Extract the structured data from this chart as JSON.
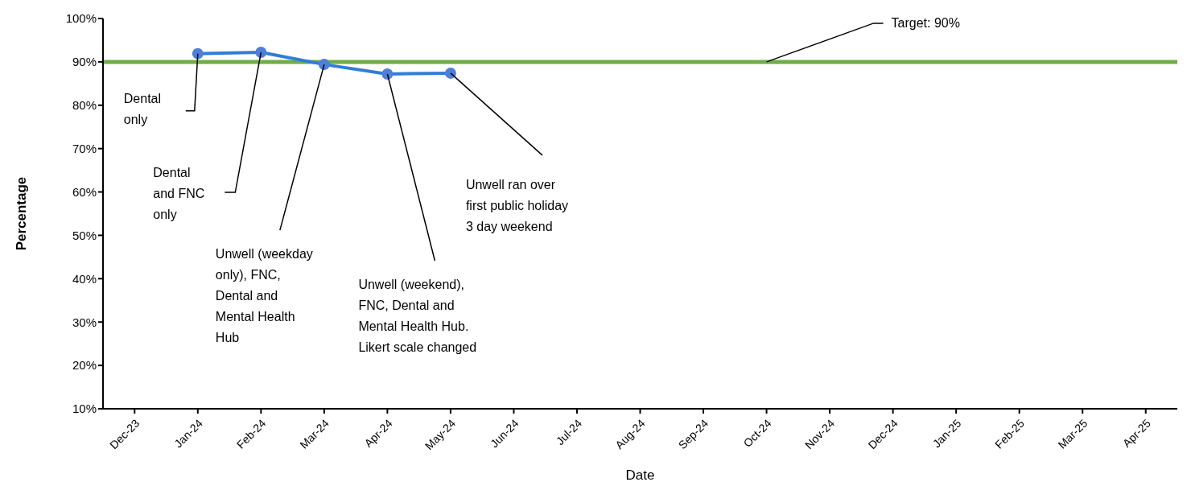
{
  "chart_data": {
    "type": "line",
    "xlabel": "Date",
    "ylabel": "Percentage",
    "categories": [
      "Dec-23",
      "Jan-24",
      "Feb-24",
      "Mar-24",
      "Apr-24",
      "May-24",
      "Jun-24",
      "Jul-24",
      "Aug-24",
      "Sep-24",
      "Oct-24",
      "Nov-24",
      "Dec-24",
      "Jan-25",
      "Feb-25",
      "Mar-25",
      "Apr-25"
    ],
    "series": [
      {
        "color": "#2f7ed8",
        "values": [
          null,
          91.9,
          92.2,
          89.4,
          87.2,
          87.4,
          null,
          null,
          null,
          null,
          null,
          null,
          null,
          null,
          null,
          null,
          null
        ]
      }
    ],
    "ylim": [
      10,
      100
    ],
    "yticks": [
      {
        "value": 10,
        "label": "10%"
      },
      {
        "value": 20,
        "label": "20%"
      },
      {
        "value": 30,
        "label": "30%"
      },
      {
        "value": 40,
        "label": "40%"
      },
      {
        "value": 50,
        "label": "50%"
      },
      {
        "value": 60,
        "label": "60%"
      },
      {
        "value": 70,
        "label": "70%"
      },
      {
        "value": 80,
        "label": "80%"
      },
      {
        "value": 90,
        "label": "90%"
      },
      {
        "value": 100,
        "label": "100%"
      }
    ],
    "ref_lines": [
      {
        "axis": "y",
        "value": 90,
        "label": "Target: 90%",
        "color": "#70ad47"
      }
    ],
    "annotations": [
      "Dental only",
      "Dental and FNC only",
      "Unwell (weekday only), FNC, Dental and Mental Health Hub",
      "Unwell (weekend), FNC, Dental and Mental Health Hub. Likert scale changed",
      "Unwell ran over first public holiday 3 day weekend"
    ],
    "grid": false,
    "legend": false,
    "marker": "circle",
    "line_style": "solid"
  }
}
